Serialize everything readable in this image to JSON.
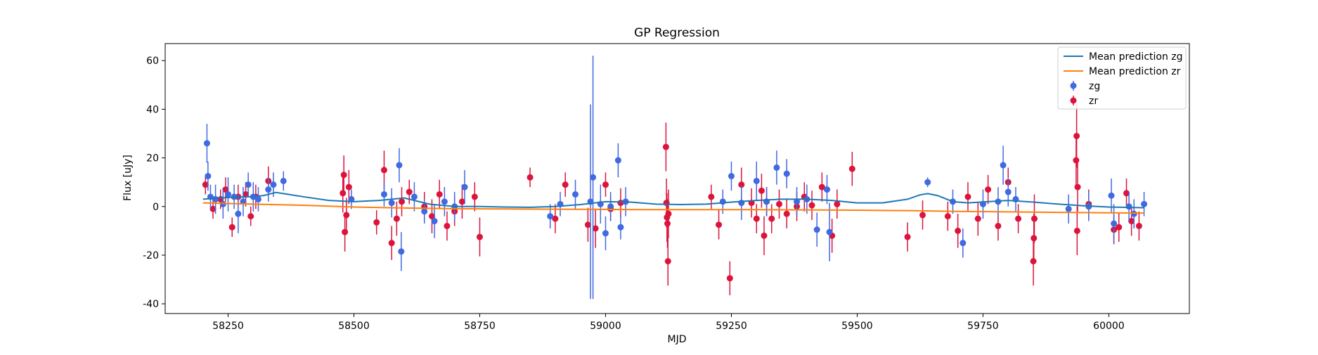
{
  "chart_data": {
    "type": "scatter",
    "title": "GP Regression",
    "xlabel": "MJD",
    "ylabel": "Flux [uJy]",
    "xlim": [
      58125,
      60160
    ],
    "ylim": [
      -44,
      67
    ],
    "x_ticks": [
      58250,
      58500,
      58750,
      59000,
      59250,
      59500,
      59750,
      60000
    ],
    "y_ticks": [
      -40,
      -20,
      0,
      20,
      40,
      60
    ],
    "grid": false,
    "legend_position": "top-right",
    "legend": [
      {
        "label": "Mean prediction zg",
        "kind": "line",
        "color": "#1f77b4"
      },
      {
        "label": "Mean prediction zr",
        "kind": "line",
        "color": "#ff7f0e"
      },
      {
        "label": "zg",
        "kind": "errorbar",
        "color": "#4169e1"
      },
      {
        "label": "zr",
        "kind": "errorbar",
        "color": "#dc143c"
      }
    ],
    "lines": [
      {
        "name": "Mean prediction zg",
        "color": "#1f77b4",
        "x": [
          58200,
          58230,
          58260,
          58290,
          58320,
          58345,
          58370,
          58400,
          58450,
          58500,
          58550,
          58600,
          58650,
          58700,
          58750,
          58800,
          58850,
          58900,
          58950,
          59000,
          59050,
          59100,
          59150,
          59200,
          59250,
          59300,
          59350,
          59400,
          59450,
          59500,
          59550,
          59600,
          59625,
          59640,
          59660,
          59690,
          59720,
          59760,
          59800,
          59850,
          59900,
          59950,
          60000,
          60070
        ],
        "y": [
          3.0,
          3.5,
          3.8,
          4.0,
          4.5,
          5.8,
          5.0,
          4.0,
          2.5,
          2.0,
          2.5,
          3.5,
          1.0,
          0.0,
          0.0,
          -0.2,
          -0.3,
          0.0,
          0.8,
          2.0,
          1.8,
          1.0,
          0.8,
          1.0,
          1.8,
          2.5,
          3.0,
          3.0,
          2.5,
          1.5,
          1.5,
          3.0,
          4.8,
          5.3,
          4.5,
          2.0,
          1.5,
          2.0,
          2.5,
          1.8,
          1.0,
          0.3,
          -0.2,
          -0.5
        ]
      },
      {
        "name": "Mean prediction zr",
        "color": "#ff7f0e",
        "x": [
          58200,
          58300,
          58400,
          58500,
          58600,
          58700,
          58800,
          58900,
          59000,
          59100,
          59200,
          59300,
          59400,
          59500,
          59600,
          59700,
          59800,
          59900,
          60000,
          60070
        ],
        "y": [
          1.5,
          1.0,
          0.5,
          -0.2,
          -0.6,
          -0.9,
          -1.0,
          -1.1,
          -1.2,
          -1.3,
          -1.3,
          -1.3,
          -1.4,
          -1.5,
          -1.7,
          -2.0,
          -2.2,
          -2.4,
          -2.6,
          -2.7
        ]
      }
    ],
    "series": [
      {
        "name": "zg",
        "color": "#4169e1",
        "x": [
          58208,
          58210,
          58215,
          58225,
          58240,
          58250,
          58262,
          58270,
          58280,
          58290,
          58300,
          58310,
          58330,
          58340,
          58360,
          58495,
          58560,
          58575,
          58590,
          58594,
          58620,
          58640,
          58660,
          58680,
          58700,
          58720,
          58890,
          58910,
          58940,
          58970,
          58975,
          58990,
          59000,
          59010,
          59025,
          59030,
          59040,
          59233,
          59250,
          59270,
          59300,
          59320,
          59340,
          59360,
          59380,
          59400,
          59420,
          59440,
          59445,
          59640,
          59690,
          59710,
          59750,
          59780,
          59790,
          59800,
          59815,
          59920,
          59960,
          60005,
          60010,
          60040,
          60050,
          60070
        ],
        "y": [
          26,
          12.5,
          4,
          3,
          1,
          5,
          4,
          -3,
          2,
          9,
          4,
          3,
          7,
          9,
          10.5,
          3,
          5,
          1.5,
          17,
          -18.5,
          4,
          -2,
          -6,
          2,
          0,
          8,
          -4,
          1,
          5,
          2,
          12,
          1,
          -11,
          0,
          19,
          -8.5,
          2,
          2,
          12.5,
          1.5,
          10.5,
          2,
          16,
          13.5,
          2,
          3,
          -9.5,
          7,
          -10.5,
          10,
          2,
          -15,
          1,
          2,
          17,
          6,
          3,
          -1,
          0,
          4.5,
          -7,
          0,
          -3,
          1
        ],
        "err": [
          8,
          6,
          5,
          6,
          6,
          7,
          5,
          8,
          6,
          5,
          6,
          5,
          5,
          5,
          4,
          4,
          5,
          6,
          7,
          8,
          6,
          5,
          7,
          6,
          6,
          7,
          5,
          5,
          6,
          40,
          50,
          8,
          7,
          6,
          7,
          5,
          6,
          5,
          6,
          7,
          8,
          6,
          7,
          6,
          6,
          6,
          7,
          6,
          12,
          2,
          5,
          6,
          6,
          6,
          8,
          6,
          5,
          6,
          6,
          7,
          8,
          6,
          6,
          5
        ]
      },
      {
        "name": "zr",
        "color": "#dc143c",
        "x": [
          58205,
          58220,
          58235,
          58245,
          58258,
          58270,
          58285,
          58295,
          58305,
          58330,
          58478,
          58480,
          58482,
          58485,
          58490,
          58545,
          58560,
          58575,
          58585,
          58595,
          58610,
          58640,
          58655,
          58670,
          58685,
          58700,
          58715,
          58740,
          58750,
          58850,
          58900,
          58920,
          58965,
          58980,
          59000,
          59010,
          59030,
          59120,
          59121,
          59122,
          59123,
          59124,
          59125,
          59210,
          59225,
          59247,
          59270,
          59290,
          59300,
          59310,
          59315,
          59320,
          59330,
          59345,
          59360,
          59380,
          59395,
          59410,
          59430,
          59450,
          59460,
          59490,
          59600,
          59630,
          59680,
          59700,
          59720,
          59740,
          59760,
          59780,
          59800,
          59820,
          59850,
          59851,
          59852,
          59935,
          59936,
          59937,
          59938,
          59960,
          60010,
          60020,
          60035,
          60045,
          60060
        ],
        "y": [
          9,
          -1,
          3,
          7,
          -8.5,
          4,
          5,
          -4,
          4,
          10.5,
          5.5,
          13,
          -10.5,
          -3.5,
          8,
          -6.5,
          15,
          -15,
          -5,
          2,
          6,
          0,
          -4,
          5,
          -8,
          -2,
          2,
          4,
          -12.5,
          12,
          -5,
          9,
          -7.5,
          -9,
          9,
          -1,
          1.5,
          24.5,
          1.5,
          -4.5,
          -7,
          -22.5,
          -3,
          4,
          -7.5,
          -29.5,
          9,
          1.5,
          -5,
          6.5,
          -12,
          2,
          -5,
          1,
          -3,
          0,
          4,
          0.5,
          8,
          -12,
          1,
          15.5,
          -12.5,
          -3.5,
          -4,
          -10,
          4,
          -5,
          7,
          -8,
          10,
          -5,
          -22.5,
          -13,
          -5,
          19,
          29,
          -10,
          8,
          1,
          -9.5,
          -8.5,
          5.5,
          -6,
          -8
        ],
        "err": [
          4,
          4,
          4,
          5,
          4,
          5,
          5,
          4,
          5,
          6,
          8,
          8,
          8,
          7,
          7,
          5,
          8,
          7,
          7,
          6,
          5,
          6,
          7,
          6,
          6,
          6,
          7,
          6,
          8,
          4,
          6,
          5,
          7,
          8,
          5,
          5,
          6,
          10,
          10,
          10,
          10,
          10,
          10,
          5,
          6,
          7,
          7,
          6,
          6,
          7,
          8,
          6,
          6,
          6,
          6,
          6,
          6,
          6,
          6,
          7,
          6,
          7,
          6,
          6,
          6,
          7,
          6,
          7,
          6,
          6,
          6,
          6,
          10,
          10,
          10,
          10,
          13,
          10,
          10,
          6,
          6,
          6,
          6,
          6,
          6
        ]
      }
    ]
  }
}
